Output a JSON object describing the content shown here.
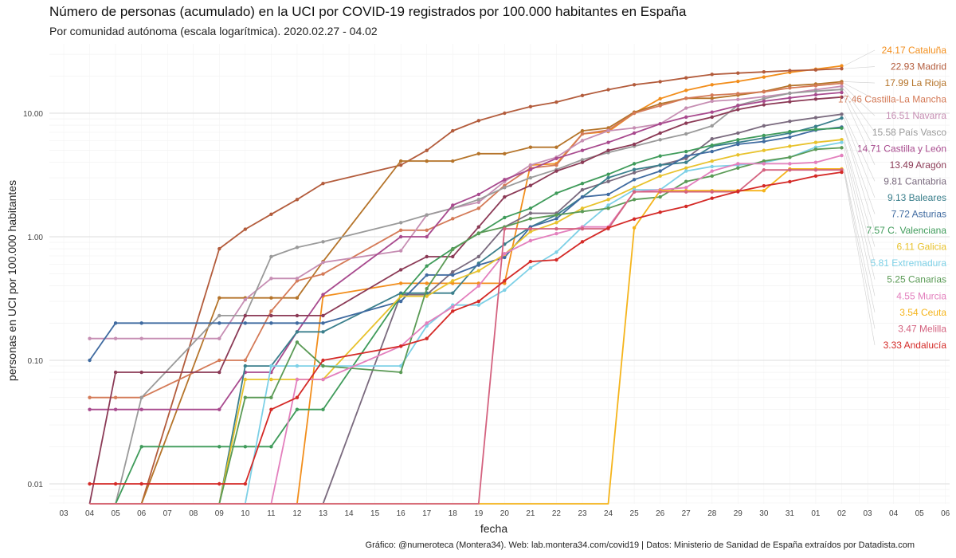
{
  "title": "Número de personas (acumulado) en la UCI por COVID-19 registrados por 100.000 habitantes en España",
  "subtitle": "Por comunidad autónoma (escala logarítmica). 2020.02.27 - 04.02",
  "caption": "Gráfico: @numeroteca (Montera34). Web: lab.montera34.com/covid19 | Datos: Ministerio de Sanidad de España extraídos por Datadista.com",
  "chart_data": {
    "type": "line",
    "xlabel": "fecha",
    "ylabel": "personas en UCI por 100.000 habitantes",
    "yscale": "log",
    "ylim": [
      0.007,
      32
    ],
    "y_ticks": [
      0.01,
      0.1,
      1,
      10
    ],
    "y_tick_labels": [
      "0.01",
      "0.10",
      "1.00",
      "10.00"
    ],
    "x_ticks": [
      "03",
      "04",
      "05",
      "06",
      "07",
      "08",
      "09",
      "10",
      "11",
      "12",
      "13",
      "14",
      "15",
      "16",
      "17",
      "18",
      "19",
      "20",
      "21",
      "22",
      "23",
      "24",
      "25",
      "26",
      "27",
      "28",
      "29",
      "30",
      "31",
      "01",
      "02",
      "03",
      "04",
      "05",
      "06"
    ],
    "x": [
      "04",
      "05",
      "06",
      "09",
      "10",
      "11",
      "12",
      "13",
      "16",
      "17",
      "18",
      "19",
      "20",
      "21",
      "22",
      "23",
      "24",
      "25",
      "26",
      "27",
      "28",
      "29",
      "30",
      "31",
      "01",
      "02"
    ],
    "grid": true,
    "legend": "end-of-line labels",
    "series": [
      {
        "name": "Cataluña",
        "label": "24.17 Cataluña",
        "color": "#f28e1c",
        "values": [
          null,
          null,
          null,
          null,
          null,
          null,
          null,
          0.33,
          0.42,
          0.42,
          0.42,
          0.42,
          0.42,
          3.8,
          3.9,
          6.8,
          7.1,
          10.0,
          13.1,
          15.3,
          17.0,
          18.1,
          19.6,
          21.4,
          22.7,
          24.17
        ]
      },
      {
        "name": "Madrid",
        "label": "22.93 Madrid",
        "color": "#b35c3c",
        "values": [
          null,
          null,
          null,
          0.8,
          1.15,
          1.52,
          2.0,
          2.7,
          3.8,
          5.0,
          7.2,
          8.7,
          10.0,
          11.3,
          12.3,
          13.9,
          15.5,
          17.0,
          18.0,
          19.3,
          20.6,
          21.1,
          21.6,
          22.1,
          22.4,
          22.93
        ]
      },
      {
        "name": "La Rioja",
        "label": "17.99 La Rioja",
        "color": "#b5742a",
        "values": [
          null,
          null,
          null,
          0.32,
          0.32,
          0.32,
          0.32,
          0.63,
          4.1,
          4.1,
          4.1,
          4.7,
          4.7,
          5.3,
          5.3,
          7.2,
          7.6,
          10.2,
          11.9,
          13.2,
          13.2,
          14.0,
          15.0,
          16.7,
          17.2,
          17.99
        ]
      },
      {
        "name": "Castilla-La Mancha",
        "label": "17.46 Castilla-La Mancha",
        "color": "#d47a57",
        "values": [
          0.05,
          0.05,
          0.05,
          0.1,
          0.1,
          0.25,
          0.44,
          0.5,
          1.13,
          1.13,
          1.4,
          1.7,
          2.6,
          3.6,
          3.8,
          6.8,
          7.3,
          10.0,
          11.5,
          13.2,
          14.0,
          14.4,
          14.9,
          16.0,
          16.7,
          17.46
        ]
      },
      {
        "name": "Navarra",
        "label": "16.51 Navarra",
        "color": "#c68eb3",
        "values": [
          0.15,
          0.15,
          0.15,
          0.15,
          0.31,
          0.46,
          0.46,
          0.62,
          0.77,
          1.5,
          1.7,
          1.9,
          2.8,
          3.8,
          4.4,
          6.0,
          7.2,
          7.6,
          8.2,
          11.0,
          12.5,
          12.9,
          13.6,
          14.5,
          15.5,
          16.51
        ]
      },
      {
        "name": "País Vasco",
        "label": "15.58 País Vasco",
        "color": "#9a9a9a",
        "values": [
          null,
          null,
          0.05,
          0.23,
          0.23,
          0.69,
          0.82,
          0.91,
          1.3,
          1.5,
          1.7,
          2.0,
          2.5,
          3.0,
          3.5,
          4.2,
          4.8,
          5.4,
          6.1,
          6.8,
          7.9,
          11.6,
          13.1,
          14.5,
          15.1,
          15.58
        ]
      },
      {
        "name": "Castilla y León",
        "label": "14.71 Castilla y León",
        "color": "#a84a8e",
        "values": [
          0.04,
          0.04,
          0.04,
          0.04,
          0.08,
          0.08,
          0.17,
          0.34,
          1.0,
          1.0,
          1.8,
          2.2,
          2.9,
          3.5,
          4.3,
          5.0,
          5.8,
          6.9,
          8.2,
          9.3,
          10.2,
          11.5,
          12.5,
          13.3,
          14.1,
          14.71
        ]
      },
      {
        "name": "Aragón",
        "label": "13.49 Aragón",
        "color": "#8b3a56",
        "values": [
          null,
          0.08,
          0.08,
          0.08,
          0.23,
          0.23,
          0.23,
          0.23,
          0.54,
          0.69,
          0.69,
          1.2,
          2.1,
          2.6,
          3.4,
          4.0,
          5.0,
          5.6,
          6.9,
          8.3,
          9.3,
          10.7,
          11.7,
          12.4,
          13.0,
          13.49
        ]
      },
      {
        "name": "Cantabria",
        "label": "9.81 Cantabria",
        "color": "#7a6a7e",
        "values": [
          null,
          null,
          null,
          null,
          null,
          null,
          null,
          null,
          0.34,
          0.34,
          0.52,
          0.69,
          1.2,
          1.55,
          1.55,
          2.4,
          2.8,
          3.3,
          3.8,
          4.3,
          6.2,
          6.9,
          7.9,
          8.6,
          9.2,
          9.81
        ]
      },
      {
        "name": "Baleares",
        "label": "9.13 Baleares",
        "color": "#3a7f8c",
        "values": [
          null,
          null,
          null,
          null,
          0.09,
          0.09,
          0.17,
          0.17,
          0.35,
          0.35,
          0.35,
          0.61,
          0.87,
          1.2,
          1.5,
          2.1,
          3.0,
          3.5,
          3.8,
          4.0,
          5.4,
          5.8,
          6.3,
          6.9,
          7.8,
          9.13
        ]
      },
      {
        "name": "Asturias",
        "label": "7.72 Asturias",
        "color": "#3f6aa0",
        "values": [
          0.1,
          0.2,
          0.2,
          0.2,
          0.2,
          0.2,
          0.2,
          0.2,
          0.3,
          0.49,
          0.49,
          0.59,
          0.68,
          1.2,
          1.4,
          2.1,
          2.2,
          2.9,
          3.4,
          4.5,
          4.9,
          5.6,
          5.9,
          6.4,
          7.3,
          7.72
        ]
      },
      {
        "name": "C. Valenciana",
        "label": "7.57 C. Valenciana",
        "color": "#3f9b5a",
        "values": [
          null,
          null,
          0.02,
          0.02,
          0.02,
          0.02,
          0.04,
          0.04,
          0.33,
          0.58,
          0.8,
          1.06,
          1.43,
          1.7,
          2.25,
          2.7,
          3.2,
          3.9,
          4.5,
          4.9,
          5.5,
          6.1,
          6.6,
          7.1,
          7.4,
          7.57
        ]
      },
      {
        "name": "Galicia",
        "label": "6.11 Galicia",
        "color": "#e8c22c",
        "values": [
          null,
          null,
          null,
          null,
          0.07,
          0.07,
          0.07,
          0.07,
          0.33,
          0.33,
          0.44,
          0.53,
          0.72,
          1.1,
          1.3,
          1.7,
          2.0,
          2.5,
          3.1,
          3.6,
          4.1,
          4.6,
          5.0,
          5.4,
          5.8,
          6.11
        ]
      },
      {
        "name": "Extremadura",
        "label": "5.81 Extremadura",
        "color": "#7dd0e6",
        "values": [
          null,
          null,
          null,
          null,
          null,
          0.09,
          0.09,
          0.09,
          0.09,
          0.19,
          0.28,
          0.28,
          0.37,
          0.56,
          0.75,
          1.2,
          1.8,
          2.4,
          2.4,
          3.4,
          3.7,
          3.8,
          4.0,
          4.4,
          5.3,
          5.81
        ]
      },
      {
        "name": "Canarias",
        "label": "5.25 Canarias",
        "color": "#5a9a55",
        "values": [
          null,
          null,
          null,
          null,
          0.05,
          0.05,
          0.14,
          0.09,
          0.08,
          0.38,
          0.79,
          1.07,
          1.2,
          1.4,
          1.5,
          1.6,
          1.7,
          2.0,
          2.1,
          2.8,
          3.1,
          3.6,
          4.1,
          4.4,
          5.1,
          5.25
        ]
      },
      {
        "name": "Murcia",
        "label": "4.55 Murcia",
        "color": "#e37fbd",
        "values": [
          null,
          null,
          null,
          null,
          null,
          null,
          0.07,
          0.07,
          0.13,
          0.2,
          0.27,
          0.4,
          0.73,
          0.93,
          1.06,
          1.2,
          1.2,
          2.3,
          2.4,
          2.5,
          3.4,
          3.9,
          3.9,
          3.9,
          4.0,
          4.55
        ]
      },
      {
        "name": "Ceuta",
        "label": "3.54 Ceuta",
        "color": "#f5b41b",
        "values": [
          null,
          null,
          null,
          null,
          null,
          null,
          null,
          null,
          null,
          null,
          null,
          null,
          null,
          null,
          null,
          null,
          null,
          1.18,
          2.36,
          2.36,
          2.36,
          2.36,
          2.36,
          3.54,
          3.54,
          3.54
        ]
      },
      {
        "name": "Melilla",
        "label": "3.47 Melilla",
        "color": "#d4627f",
        "values": [
          null,
          null,
          null,
          null,
          null,
          null,
          null,
          null,
          null,
          null,
          null,
          null,
          1.16,
          1.16,
          1.16,
          1.16,
          1.16,
          2.31,
          2.31,
          2.31,
          2.31,
          2.31,
          3.47,
          3.47,
          3.47,
          3.47
        ]
      },
      {
        "name": "Andalucía",
        "label": "3.33 Andalucía",
        "color": "#d42a27",
        "values": [
          0.01,
          0.01,
          0.01,
          0.01,
          0.01,
          0.04,
          0.05,
          0.1,
          0.13,
          0.15,
          0.25,
          0.3,
          0.44,
          0.63,
          0.65,
          0.91,
          1.18,
          1.39,
          1.58,
          1.76,
          2.05,
          2.33,
          2.58,
          2.79,
          3.1,
          3.33
        ]
      }
    ]
  }
}
